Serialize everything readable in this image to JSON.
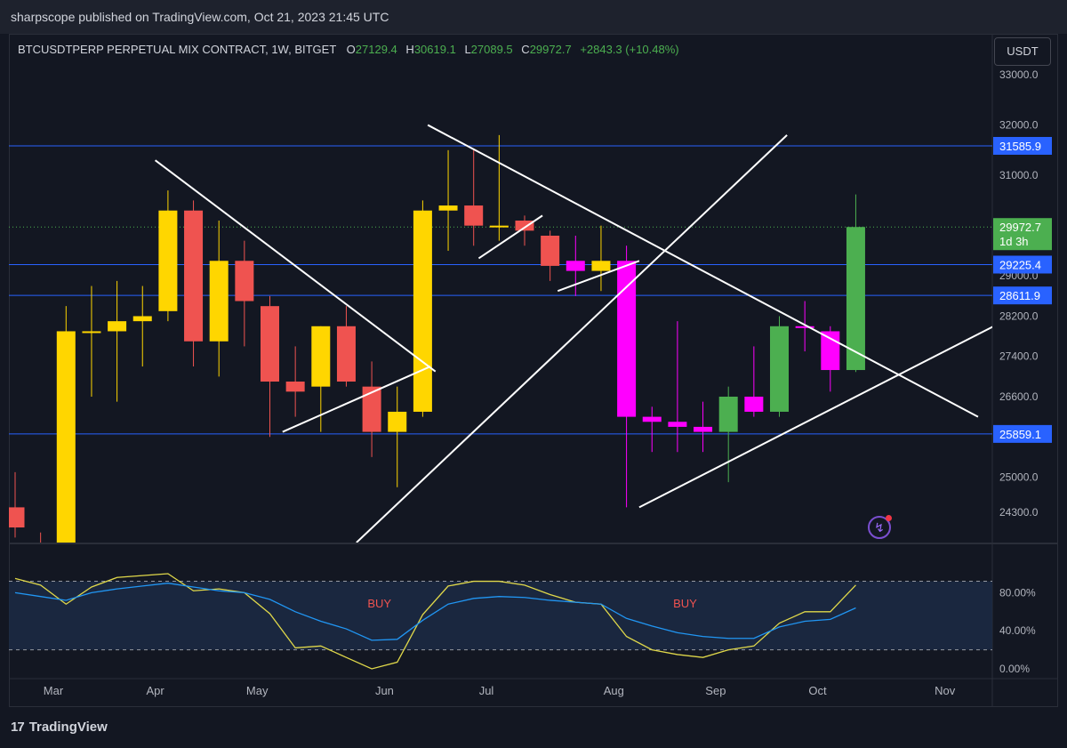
{
  "header": {
    "published": "sharpscope published on TradingView.com, Oct 21, 2023 21:45 UTC"
  },
  "legend": {
    "symbol": "BTCUSDTPERP PERPETUAL MIX CONTRACT, 1W, BITGET",
    "o_label": "O",
    "o_value": "27129.4",
    "h_label": "H",
    "h_value": "30619.1",
    "l_label": "L",
    "l_value": "27089.5",
    "c_label": "C",
    "c_value": "29972.7",
    "change": "+2843.3 (+10.48%)"
  },
  "currency_button": "USDT",
  "footer": {
    "brand": "TradingView",
    "brand_mark": "17"
  },
  "colors": {
    "background": "#131722",
    "grid": "#2a2e39",
    "yellow": "#ffd600",
    "red": "#ef5350",
    "magenta": "#ff00ff",
    "green": "#4caf50",
    "level_line": "#2962ff",
    "trendline": "#ffffff",
    "stoch_k": "#e0d84a",
    "stoch_d": "#2196f3"
  },
  "chart_data": [
    {
      "type": "candlestick",
      "timeframe": "1W",
      "price_axis_ticks": [
        24300,
        25000,
        25859.1,
        26600,
        27400,
        28200,
        28611.9,
        29000,
        29225.4,
        29972.7,
        31000,
        31585.9,
        32000,
        33000
      ],
      "price_tick_labels": [
        "24300.0",
        "25000.0",
        "26600.0",
        "27400.0",
        "28200.0",
        "29000.0",
        "31000.0",
        "32000.0",
        "33000.0"
      ],
      "ylim": [
        23700,
        33000
      ],
      "time_labels": [
        "Mar",
        "Apr",
        "May",
        "Jun",
        "Jul",
        "Aug",
        "Sep",
        "Oct",
        "Nov"
      ],
      "time_label_index": [
        1.5,
        5.5,
        9.5,
        14.5,
        18.5,
        23.5,
        27.5,
        31.5,
        36.5
      ],
      "candles": [
        {
          "o": 24000,
          "h": 25100,
          "l": 23800,
          "c": 24400,
          "color": "red"
        },
        {
          "o": 23700,
          "h": 23900,
          "l": 23700,
          "c": 23700,
          "color": "red"
        },
        {
          "o": 23700,
          "h": 28400,
          "l": 23700,
          "c": 27900,
          "color": "yellow"
        },
        {
          "o": 27900,
          "h": 28800,
          "l": 26600,
          "c": 27900,
          "color": "yellow"
        },
        {
          "o": 27900,
          "h": 28900,
          "l": 26500,
          "c": 28100,
          "color": "yellow"
        },
        {
          "o": 28100,
          "h": 28800,
          "l": 27200,
          "c": 28200,
          "color": "yellow"
        },
        {
          "o": 28300,
          "h": 30700,
          "l": 28100,
          "c": 30300,
          "color": "yellow"
        },
        {
          "o": 30300,
          "h": 30500,
          "l": 27200,
          "c": 27700,
          "color": "red"
        },
        {
          "o": 27700,
          "h": 30100,
          "l": 27000,
          "c": 29300,
          "color": "yellow"
        },
        {
          "o": 29300,
          "h": 29700,
          "l": 27600,
          "c": 28500,
          "color": "red"
        },
        {
          "o": 28400,
          "h": 28600,
          "l": 25800,
          "c": 26900,
          "color": "red"
        },
        {
          "o": 26900,
          "h": 27600,
          "l": 26200,
          "c": 26700,
          "color": "red"
        },
        {
          "o": 26800,
          "h": 28000,
          "l": 25900,
          "c": 28000,
          "color": "yellow"
        },
        {
          "o": 28000,
          "h": 28400,
          "l": 26800,
          "c": 26900,
          "color": "red"
        },
        {
          "o": 26800,
          "h": 27300,
          "l": 25400,
          "c": 25900,
          "color": "red"
        },
        {
          "o": 25900,
          "h": 26800,
          "l": 24800,
          "c": 26300,
          "color": "yellow"
        },
        {
          "o": 26300,
          "h": 30500,
          "l": 26200,
          "c": 30300,
          "color": "yellow"
        },
        {
          "o": 30300,
          "h": 31500,
          "l": 29500,
          "c": 30400,
          "color": "yellow"
        },
        {
          "o": 30400,
          "h": 31500,
          "l": 29600,
          "c": 30000,
          "color": "red"
        },
        {
          "o": 30000,
          "h": 31800,
          "l": 29700,
          "c": 30000,
          "color": "yellow"
        },
        {
          "o": 30100,
          "h": 30200,
          "l": 29600,
          "c": 29900,
          "color": "red"
        },
        {
          "o": 29800,
          "h": 29900,
          "l": 28900,
          "c": 29200,
          "color": "red"
        },
        {
          "o": 29100,
          "h": 29800,
          "l": 28600,
          "c": 29300,
          "color": "magenta"
        },
        {
          "o": 29100,
          "h": 30000,
          "l": 28700,
          "c": 29300,
          "color": "yellow"
        },
        {
          "o": 29300,
          "h": 29600,
          "l": 24400,
          "c": 26200,
          "color": "magenta"
        },
        {
          "o": 26200,
          "h": 26400,
          "l": 25500,
          "c": 26100,
          "color": "magenta"
        },
        {
          "o": 26100,
          "h": 28100,
          "l": 25500,
          "c": 26000,
          "color": "magenta"
        },
        {
          "o": 26000,
          "h": 26500,
          "l": 25500,
          "c": 25900,
          "color": "magenta"
        },
        {
          "o": 25900,
          "h": 26800,
          "l": 24900,
          "c": 26600,
          "color": "green"
        },
        {
          "o": 26600,
          "h": 27600,
          "l": 26200,
          "c": 26300,
          "color": "magenta"
        },
        {
          "o": 26300,
          "h": 28200,
          "l": 26200,
          "c": 28000,
          "color": "green"
        },
        {
          "o": 28000,
          "h": 28500,
          "l": 27500,
          "c": 28000,
          "color": "magenta"
        },
        {
          "o": 27900,
          "h": 28000,
          "l": 26700,
          "c": 27129.4,
          "color": "magenta"
        },
        {
          "o": 27129.4,
          "h": 30619.1,
          "l": 27089.5,
          "c": 29972.7,
          "color": "green"
        }
      ],
      "horizontal_levels": [
        {
          "price": 31585.9,
          "label": "31585.9"
        },
        {
          "price": 29225.4,
          "label": "29225.4"
        },
        {
          "price": 28611.9,
          "label": "28611.9"
        },
        {
          "price": 25859.1,
          "label": "25859.1"
        }
      ],
      "last_price": {
        "price": 29972.7,
        "label": "29972.7",
        "countdown": "1d 3h"
      },
      "trendlines": [
        {
          "from": {
            "i": 5.5,
            "p": 31300
          },
          "to": {
            "i": 16.5,
            "p": 27100
          }
        },
        {
          "from": {
            "i": 10.5,
            "p": 25900
          },
          "to": {
            "i": 16.3,
            "p": 27200
          }
        },
        {
          "from": {
            "i": 13.4,
            "p": 23700
          },
          "to": {
            "i": 30.3,
            "p": 31800
          }
        },
        {
          "from": {
            "i": 16.2,
            "p": 32000
          },
          "to": {
            "i": 37.8,
            "p": 26200
          }
        },
        {
          "from": {
            "i": 18.2,
            "p": 29350
          },
          "to": {
            "i": 20.7,
            "p": 30200
          }
        },
        {
          "from": {
            "i": 21.3,
            "p": 28700
          },
          "to": {
            "i": 24.5,
            "p": 29300
          }
        },
        {
          "from": {
            "i": 24.5,
            "p": 24400
          },
          "to": {
            "i": 38.8,
            "p": 28100
          }
        }
      ]
    },
    {
      "type": "line",
      "name": "oscillator",
      "ylim": [
        0,
        100
      ],
      "tick_labels": [
        "80.00%",
        "40.00%",
        "0.00%"
      ],
      "tick_values": [
        80,
        40,
        0
      ],
      "band": [
        20,
        92
      ],
      "annotations": [
        {
          "text": "BUY",
          "i": 14.3,
          "y": 68
        },
        {
          "text": "BUY",
          "i": 26.3,
          "y": 68
        }
      ],
      "series": [
        {
          "color": "stoch_k",
          "values": [
            95,
            88,
            68,
            86,
            96,
            98,
            100,
            82,
            84,
            80,
            58,
            22,
            24,
            12,
            0,
            7,
            57,
            87,
            92,
            92,
            88,
            78,
            70,
            68,
            34,
            20,
            15,
            12,
            20,
            24,
            48,
            60,
            60,
            88
          ]
        },
        {
          "color": "stoch_d",
          "values": [
            80,
            76,
            72,
            80,
            84,
            87,
            90,
            86,
            82,
            80,
            73,
            60,
            50,
            42,
            30,
            31,
            51,
            68,
            74,
            76,
            75,
            72,
            70,
            68,
            53,
            45,
            38,
            34,
            32,
            32,
            44,
            50,
            52,
            64
          ]
        }
      ]
    }
  ]
}
